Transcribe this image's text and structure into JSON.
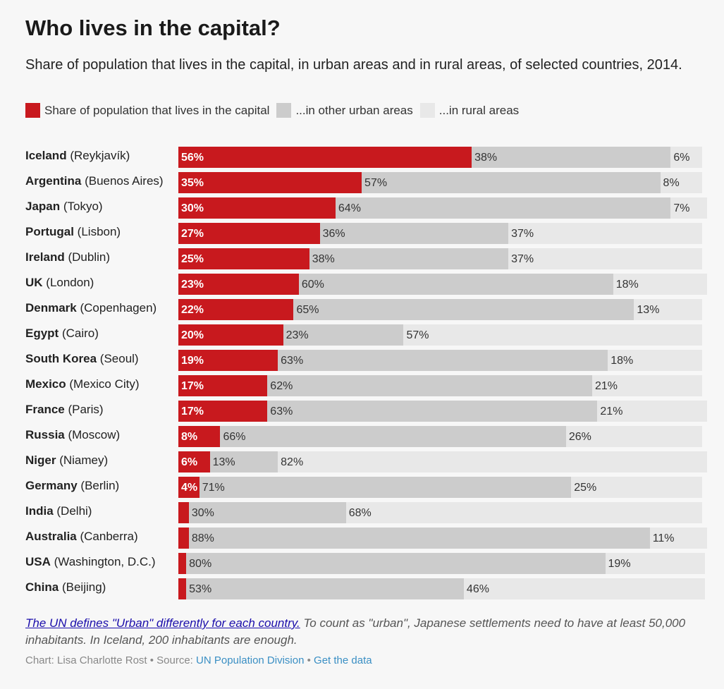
{
  "title": "Who lives in the capital?",
  "subtitle": "Share of population that lives in the capital, in urban areas and in rural areas, of selected countries, 2014.",
  "legend": [
    {
      "label": "Share of population that lives in the capital",
      "color": "#c8191e"
    },
    {
      "label": "...in other urban areas",
      "color": "#cccccc"
    },
    {
      "label": "...in rural areas",
      "color": "#e8e8e8"
    }
  ],
  "colors": {
    "capital": "#c8191e",
    "urban": "#cccccc",
    "rural": "#e8e8e8"
  },
  "chart_data": {
    "type": "bar",
    "stacked": true,
    "orientation": "horizontal",
    "title": "Who lives in the capital?",
    "categories": [
      {
        "country": "Iceland",
        "capital": "(Reykjavík)"
      },
      {
        "country": "Argentina",
        "capital": "(Buenos Aires)"
      },
      {
        "country": "Japan",
        "capital": "(Tokyo)"
      },
      {
        "country": "Portugal",
        "capital": "(Lisbon)"
      },
      {
        "country": "Ireland",
        "capital": "(Dublin)"
      },
      {
        "country": "UK",
        "capital": "(London)"
      },
      {
        "country": "Denmark",
        "capital": "(Copenhagen)"
      },
      {
        "country": "Egypt",
        "capital": "(Cairo)"
      },
      {
        "country": "South Korea",
        "capital": "(Seoul)"
      },
      {
        "country": "Mexico",
        "capital": "(Mexico City)"
      },
      {
        "country": "France",
        "capital": "(Paris)"
      },
      {
        "country": "Russia",
        "capital": "(Moscow)"
      },
      {
        "country": "Niger",
        "capital": "(Niamey)"
      },
      {
        "country": "Germany",
        "capital": "(Berlin)"
      },
      {
        "country": "India",
        "capital": "(Delhi)"
      },
      {
        "country": "Australia",
        "capital": "(Canberra)"
      },
      {
        "country": "USA",
        "capital": "(Washington, D.C.)"
      },
      {
        "country": "China",
        "capital": "(Beijing)"
      }
    ],
    "series": [
      {
        "name": "Share of population that lives in the capital",
        "key": "capital",
        "values": [
          56,
          35,
          30,
          27,
          25,
          23,
          22,
          20,
          19,
          17,
          17,
          8,
          6,
          4,
          2,
          2,
          1.5,
          1.5
        ],
        "labels": [
          "56%",
          "35%",
          "30%",
          "27%",
          "25%",
          "23%",
          "22%",
          "20%",
          "19%",
          "17%",
          "17%",
          "8%",
          "6%",
          "4%",
          "",
          "",
          "",
          ""
        ]
      },
      {
        "name": "...in other urban areas",
        "key": "urban",
        "values": [
          38,
          57,
          64,
          36,
          38,
          60,
          65,
          23,
          63,
          62,
          63,
          66,
          13,
          71,
          30,
          88,
          80,
          53
        ],
        "labels": [
          "38%",
          "57%",
          "64%",
          "36%",
          "38%",
          "60%",
          "65%",
          "23%",
          "63%",
          "62%",
          "63%",
          "66%",
          "13%",
          "71%",
          "30%",
          "88%",
          "80%",
          "53%"
        ]
      },
      {
        "name": "...in rural areas",
        "key": "rural",
        "values": [
          6,
          8,
          7,
          37,
          37,
          18,
          13,
          57,
          18,
          21,
          21,
          26,
          82,
          25,
          68,
          11,
          19,
          46
        ],
        "labels": [
          "6%",
          "8%",
          "7%",
          "37%",
          "37%",
          "18%",
          "13%",
          "57%",
          "18%",
          "21%",
          "21%",
          "26%",
          "82%",
          "25%",
          "68%",
          "11%",
          "19%",
          "46%"
        ]
      }
    ],
    "xlim": [
      0,
      100
    ],
    "grid": false,
    "legend_position": "top-left"
  },
  "footnote": {
    "link_text": "The UN defines \"Urban\" differently for each country.",
    "text": " To count as \"urban\", Japanese settlements need to have at least 50,000 inhabitants. In Iceland, 200 inhabitants are enough."
  },
  "credits": {
    "prefix": "Chart: Lisa Charlotte Rost • Source: ",
    "source": "UN Population Division",
    "separator": " • ",
    "get_data": "Get the data"
  }
}
